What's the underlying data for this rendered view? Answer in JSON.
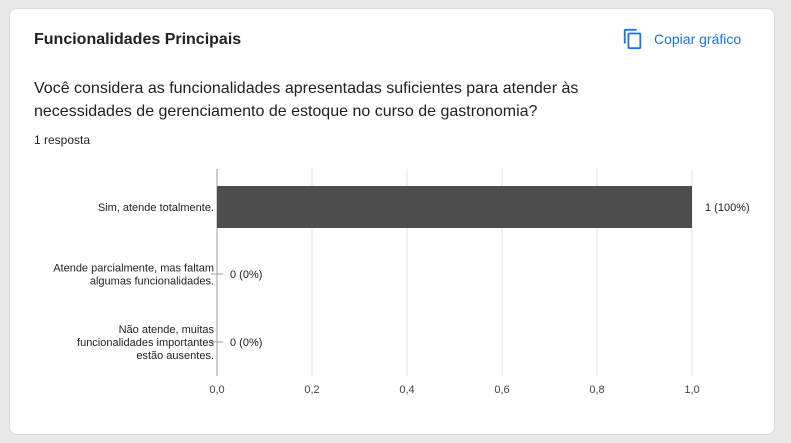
{
  "card": {
    "title": "Funcionalidades Principais",
    "copy_label": "Copiar gráfico",
    "copy_icon": "copy-icon",
    "question": "Você considera as funcionalidades apresentadas suficientes para atender às necessidades de gerenciamento de estoque no curso de gastronomia?",
    "responses": "1 resposta"
  },
  "colors": {
    "bar": "#4d4d4d",
    "accent": "#1a73e8",
    "grid": "#e0e0e0"
  },
  "chart_data": {
    "type": "bar",
    "orientation": "horizontal",
    "categories": [
      [
        "Sim, atende totalmente."
      ],
      [
        "Atende parcialmente, mas faltam",
        "algumas funcionalidades."
      ],
      [
        "Não atende, muitas",
        "funcionalidades importantes",
        "estão ausentes."
      ]
    ],
    "values": [
      1,
      0,
      0
    ],
    "value_labels": [
      "1 (100%)",
      "0 (0%)",
      "0 (0%)"
    ],
    "xlim": [
      0,
      1
    ],
    "xticks": [
      "0,0",
      "0,2",
      "0,4",
      "0,6",
      "0,8",
      "1,0"
    ],
    "grid": true
  }
}
